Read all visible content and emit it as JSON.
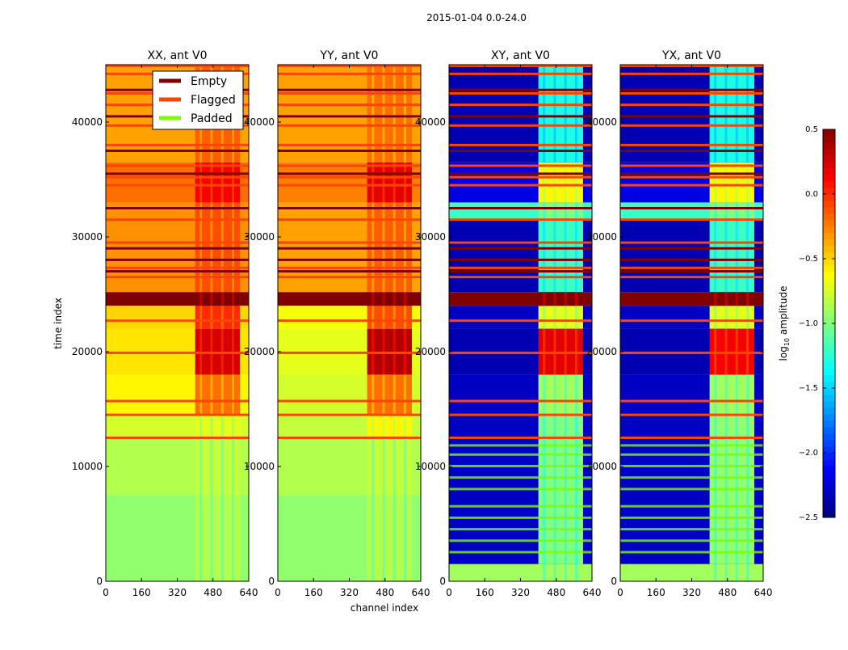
{
  "chart_data": {
    "type": "heatmap",
    "title": "2015-01-04 0.0-24.0",
    "xlabel": "channel index",
    "ylabel": "time index",
    "xlim": [
      0,
      640
    ],
    "ylim": [
      0,
      45000
    ],
    "xticks": [
      "0",
      "160",
      "320",
      "480",
      "640"
    ],
    "yticks": [
      "0",
      "10000",
      "20000",
      "30000",
      "40000"
    ],
    "ytick_values": [
      0,
      10000,
      20000,
      30000,
      40000
    ],
    "xtick_values": [
      0,
      160,
      320,
      480,
      640
    ],
    "high_channel_range": [
      400,
      600
    ],
    "colorbar": {
      "label": "log10 amplitude",
      "label_main": "log",
      "label_sub": "10",
      "label_rest": " amplitude",
      "range": [
        -2.5,
        0.5
      ],
      "ticks": [
        "0.5",
        "0.0",
        "−0.5",
        "−1.0",
        "−1.5",
        "−2.0",
        "−2.5"
      ],
      "tick_values": [
        0.5,
        0.0,
        -0.5,
        -1.0,
        -1.5,
        -2.0,
        -2.5
      ]
    },
    "legend": {
      "placement": "upper-right of first panel",
      "entries": [
        {
          "label": "Empty",
          "color": "#7f0000"
        },
        {
          "label": "Flagged",
          "color": "#ff4500"
        },
        {
          "label": "Padded",
          "color": "#7cfc00"
        }
      ]
    },
    "panels": [
      {
        "title": "XX, ant V0",
        "segments": [
          {
            "t": [
              0,
              7500
            ],
            "lo": -0.95,
            "hi": -0.85
          },
          {
            "t": [
              7500,
              12500
            ],
            "lo": -0.85,
            "hi": -0.8
          },
          {
            "t": [
              12500,
              14500
            ],
            "lo": -0.75,
            "hi": -0.7
          },
          {
            "t": [
              14500,
              18000
            ],
            "lo": -0.6,
            "hi": -0.2
          },
          {
            "t": [
              18000,
              22000
            ],
            "lo": -0.55,
            "hi": 0.25
          },
          {
            "t": [
              22000,
              24000
            ],
            "lo": -0.5,
            "hi": 0.0
          },
          {
            "t": [
              24000,
              25200
            ],
            "lo": 0.5,
            "hi": 0.5
          },
          {
            "t": [
              25200,
              33000
            ],
            "lo": -0.3,
            "hi": -0.1
          },
          {
            "t": [
              33000,
              36500
            ],
            "lo": -0.2,
            "hi": 0.15
          },
          {
            "t": [
              36500,
              45000
            ],
            "lo": -0.35,
            "hi": -0.15
          }
        ],
        "padded_rows": []
      },
      {
        "title": "YY, ant V0",
        "segments": [
          {
            "t": [
              0,
              7500
            ],
            "lo": -0.95,
            "hi": -0.85
          },
          {
            "t": [
              7500,
              12500
            ],
            "lo": -0.85,
            "hi": -0.8
          },
          {
            "t": [
              12500,
              14500
            ],
            "lo": -0.8,
            "hi": -0.6
          },
          {
            "t": [
              14500,
              18000
            ],
            "lo": -0.75,
            "hi": -0.2
          },
          {
            "t": [
              18000,
              22000
            ],
            "lo": -0.7,
            "hi": 0.35
          },
          {
            "t": [
              22000,
              24000
            ],
            "lo": -0.65,
            "hi": -0.1
          },
          {
            "t": [
              24000,
              25200
            ],
            "lo": 0.5,
            "hi": 0.5
          },
          {
            "t": [
              25200,
              33000
            ],
            "lo": -0.35,
            "hi": -0.15
          },
          {
            "t": [
              33000,
              36500
            ],
            "lo": -0.25,
            "hi": 0.2
          },
          {
            "t": [
              36500,
              45000
            ],
            "lo": -0.35,
            "hi": -0.2
          }
        ],
        "padded_rows": []
      },
      {
        "title": "XY, ant V0",
        "segments": [
          {
            "t": [
              0,
              1500
            ],
            "lo": -0.9,
            "hi": -0.9
          },
          {
            "t": [
              1500,
              14500
            ],
            "lo": -2.3,
            "hi": -1.0
          },
          {
            "t": [
              14500,
              18000
            ],
            "lo": -2.3,
            "hi": -0.9
          },
          {
            "t": [
              18000,
              22000
            ],
            "lo": -2.35,
            "hi": 0.2
          },
          {
            "t": [
              22000,
              24000
            ],
            "lo": -2.3,
            "hi": -0.7
          },
          {
            "t": [
              24000,
              25200
            ],
            "lo": 0.5,
            "hi": 0.5
          },
          {
            "t": [
              25200,
              31500
            ],
            "lo": -2.35,
            "hi": -1.2
          },
          {
            "t": [
              31500,
              33000
            ],
            "lo": -1.2,
            "hi": -1.0
          },
          {
            "t": [
              33000,
              36500
            ],
            "lo": -2.2,
            "hi": -0.6
          },
          {
            "t": [
              36500,
              45000
            ],
            "lo": -2.35,
            "hi": -1.3
          }
        ],
        "padded_rows": [
          2500,
          3500,
          4500,
          5500,
          6500,
          8000,
          9000,
          10000,
          11000,
          11800
        ]
      },
      {
        "title": "YX, ant V0",
        "segments": [
          {
            "t": [
              0,
              1500
            ],
            "lo": -0.9,
            "hi": -0.9
          },
          {
            "t": [
              1500,
              14500
            ],
            "lo": -2.3,
            "hi": -0.95
          },
          {
            "t": [
              14500,
              18000
            ],
            "lo": -2.3,
            "hi": -0.9
          },
          {
            "t": [
              18000,
              22000
            ],
            "lo": -2.35,
            "hi": 0.15
          },
          {
            "t": [
              22000,
              24000
            ],
            "lo": -2.3,
            "hi": -0.7
          },
          {
            "t": [
              24000,
              25200
            ],
            "lo": 0.5,
            "hi": 0.5
          },
          {
            "t": [
              25200,
              31500
            ],
            "lo": -2.35,
            "hi": -1.2
          },
          {
            "t": [
              31500,
              33000
            ],
            "lo": -1.2,
            "hi": -1.0
          },
          {
            "t": [
              33000,
              36500
            ],
            "lo": -2.2,
            "hi": -0.6
          },
          {
            "t": [
              36500,
              45000
            ],
            "lo": -2.35,
            "hi": -1.3
          }
        ],
        "padded_rows": [
          2500,
          3500,
          4500,
          5500,
          6500,
          8000,
          9000,
          10000,
          11000,
          11800
        ]
      }
    ],
    "flagged_rows": [
      12500,
      14500,
      15700,
      19900,
      22700,
      26500,
      27300,
      29500,
      31500,
      34500,
      35200,
      36200,
      38000,
      39700,
      41500,
      42500,
      44200,
      44900
    ],
    "empty_rows": [
      27000,
      28000,
      29000,
      32500,
      35500,
      37500,
      40500,
      42800
    ]
  }
}
